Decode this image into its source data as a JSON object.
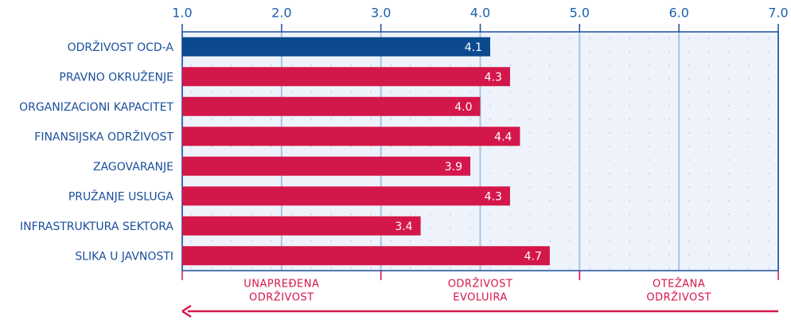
{
  "chart_data": {
    "type": "bar",
    "orientation": "horizontal",
    "categories": [
      "ODRŽIVOST OCD-A",
      "PRAVNO OKRUŽENJE",
      "ORGANIZACIONI KAPACITET",
      "FINANSIJSKA ODRŽIVOST",
      "ZAGOVARANJE",
      "PRUŽANJE USLUGA",
      "INFRASTRUKTURA SEKTORA",
      "SLIKA U JAVNOSTI"
    ],
    "values": [
      4.1,
      4.3,
      4.0,
      4.4,
      3.9,
      4.3,
      3.4,
      4.7
    ],
    "value_labels": [
      "4.1",
      "4.3",
      "4.0",
      "4.4",
      "3.9",
      "4.3",
      "3.4",
      "4.7"
    ],
    "colors": [
      "#0b4a8e",
      "#d4174a",
      "#d4174a",
      "#d4174a",
      "#d4174a",
      "#d4174a",
      "#d4174a",
      "#d4174a"
    ],
    "xlim": [
      1,
      7
    ],
    "xticks": [
      {
        "value": 1,
        "label": "1.0"
      },
      {
        "value": 2,
        "label": "2.0"
      },
      {
        "value": 3,
        "label": "3.0"
      },
      {
        "value": 4,
        "label": "4.0"
      },
      {
        "value": 5,
        "label": "5.0"
      },
      {
        "value": 6,
        "label": "6.0"
      },
      {
        "value": 7,
        "label": "7.0"
      }
    ],
    "grid": true,
    "zones": [
      {
        "label": [
          "UNAPREĐENA",
          "ODRŽIVOST"
        ],
        "bounds": [
          1,
          3
        ]
      },
      {
        "label": [
          "ODRŽIVOST",
          "EVOLUIRA"
        ],
        "bounds": [
          3,
          5
        ]
      },
      {
        "label": [
          "OTEŽANA",
          "ODRŽIVOST"
        ],
        "bounds": [
          5,
          7
        ]
      }
    ]
  }
}
